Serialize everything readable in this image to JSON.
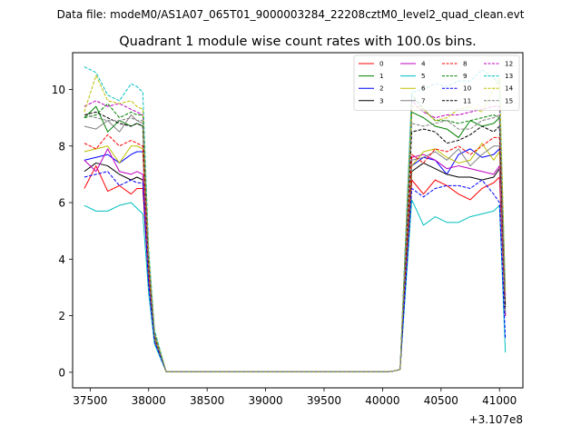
{
  "chart_data": {
    "type": "line",
    "suptitle": "Data file: modeM0/AS1A07_065T01_9000003284_22208cztM0_level2_quad_clean.evt",
    "title": "Quadrant 1 module wise count rates with 100.0s bins.",
    "xlabel": "",
    "ylabel": "",
    "x_offset_label": "+3.107e8",
    "xlim": [
      37350,
      41200
    ],
    "ylim": [
      -0.55,
      11.3
    ],
    "x_ticks": [
      37500,
      38000,
      38500,
      39000,
      39500,
      40000,
      40500,
      41000
    ],
    "x_tick_labels": [
      "37500",
      "38000",
      "38500",
      "39000",
      "39500",
      "40000",
      "40500",
      "41000"
    ],
    "y_ticks": [
      0,
      2,
      4,
      6,
      8,
      10
    ],
    "y_tick_labels": [
      "0",
      "2",
      "4",
      "6",
      "8",
      "10"
    ],
    "grid": false,
    "legend": {
      "placement": "top-right",
      "columns": 4
    },
    "x": [
      37450,
      37550,
      37650,
      37750,
      37850,
      37900,
      37950,
      38000,
      38050,
      38150,
      38250,
      38350,
      38450,
      38550,
      38650,
      38750,
      38850,
      38950,
      39050,
      39150,
      39250,
      39350,
      39450,
      39550,
      39650,
      39750,
      39850,
      39950,
      40050,
      40100,
      40150,
      40250,
      40350,
      40450,
      40550,
      40650,
      40750,
      40850,
      40950,
      41000,
      41050
    ],
    "series": [
      {
        "name": "0",
        "color": "#ff0000",
        "dash": false,
        "values": [
          6.5,
          7.3,
          6.4,
          6.6,
          6.3,
          6.5,
          6.5,
          3.2,
          1.2,
          0.02,
          0.02,
          0.02,
          0.02,
          0.02,
          0.02,
          0.02,
          0.02,
          0.02,
          0.02,
          0.02,
          0.02,
          0.02,
          0.02,
          0.02,
          0.02,
          0.02,
          0.02,
          0.02,
          0.02,
          0.05,
          0.1,
          6.8,
          6.3,
          6.8,
          6.6,
          6.3,
          6.1,
          6.5,
          6.7,
          6.9,
          2.0
        ]
      },
      {
        "name": "1",
        "color": "#008000",
        "dash": false,
        "values": [
          9.0,
          9.4,
          8.5,
          8.9,
          8.7,
          8.8,
          8.7,
          4.0,
          1.3,
          0.02,
          0.02,
          0.02,
          0.02,
          0.02,
          0.02,
          0.02,
          0.02,
          0.02,
          0.02,
          0.02,
          0.02,
          0.02,
          0.02,
          0.02,
          0.02,
          0.02,
          0.02,
          0.02,
          0.02,
          0.05,
          0.1,
          9.2,
          9.0,
          8.7,
          8.6,
          8.3,
          8.9,
          8.7,
          8.8,
          9.0,
          2.3
        ]
      },
      {
        "name": "2",
        "color": "#0000ff",
        "dash": false,
        "values": [
          7.5,
          7.6,
          7.7,
          7.4,
          7.7,
          7.8,
          7.8,
          3.5,
          1.2,
          0.02,
          0.02,
          0.02,
          0.02,
          0.02,
          0.02,
          0.02,
          0.02,
          0.02,
          0.02,
          0.02,
          0.02,
          0.02,
          0.02,
          0.02,
          0.02,
          0.02,
          0.02,
          0.02,
          0.02,
          0.05,
          0.1,
          7.3,
          7.6,
          7.5,
          7.0,
          7.7,
          7.9,
          7.6,
          7.7,
          7.9,
          2.1
        ]
      },
      {
        "name": "3",
        "color": "#000000",
        "dash": false,
        "values": [
          7.1,
          7.4,
          7.3,
          7.0,
          6.8,
          6.9,
          6.8,
          3.3,
          1.1,
          0.02,
          0.02,
          0.02,
          0.02,
          0.02,
          0.02,
          0.02,
          0.02,
          0.02,
          0.02,
          0.02,
          0.02,
          0.02,
          0.02,
          0.02,
          0.02,
          0.02,
          0.02,
          0.02,
          0.02,
          0.05,
          0.1,
          7.1,
          7.4,
          7.2,
          7.0,
          6.9,
          6.9,
          6.8,
          6.9,
          7.2,
          2.0
        ]
      },
      {
        "name": "4",
        "color": "#bf00bf",
        "dash": false,
        "values": [
          7.5,
          7.1,
          7.9,
          7.1,
          7.0,
          7.1,
          7.0,
          3.3,
          1.1,
          0.02,
          0.02,
          0.02,
          0.02,
          0.02,
          0.02,
          0.02,
          0.02,
          0.02,
          0.02,
          0.02,
          0.02,
          0.02,
          0.02,
          0.02,
          0.02,
          0.02,
          0.02,
          0.02,
          0.02,
          0.05,
          0.1,
          7.6,
          7.7,
          7.5,
          7.2,
          7.3,
          7.2,
          7.1,
          7.0,
          7.3,
          2.0
        ]
      },
      {
        "name": "5",
        "color": "#00bfbf",
        "dash": false,
        "values": [
          5.9,
          5.7,
          5.7,
          5.9,
          6.0,
          5.8,
          5.6,
          2.8,
          1.0,
          0.02,
          0.02,
          0.02,
          0.02,
          0.02,
          0.02,
          0.02,
          0.02,
          0.02,
          0.02,
          0.02,
          0.02,
          0.02,
          0.02,
          0.02,
          0.02,
          0.02,
          0.02,
          0.02,
          0.02,
          0.05,
          0.1,
          6.1,
          5.2,
          5.5,
          5.3,
          5.3,
          5.5,
          5.6,
          5.7,
          5.9,
          0.7
        ]
      },
      {
        "name": "6",
        "color": "#bfbf00",
        "dash": false,
        "values": [
          7.8,
          7.9,
          8.0,
          7.4,
          8.0,
          8.0,
          7.9,
          3.6,
          1.2,
          0.02,
          0.02,
          0.02,
          0.02,
          0.02,
          0.02,
          0.02,
          0.02,
          0.02,
          0.02,
          0.02,
          0.02,
          0.02,
          0.02,
          0.02,
          0.02,
          0.02,
          0.02,
          0.02,
          0.02,
          0.05,
          0.1,
          7.3,
          7.8,
          7.9,
          7.6,
          7.4,
          7.5,
          8.1,
          7.5,
          7.8,
          2.2
        ]
      },
      {
        "name": "7",
        "color": "#808080",
        "dash": false,
        "values": [
          8.7,
          8.6,
          8.9,
          8.5,
          9.1,
          8.9,
          8.8,
          3.9,
          1.3,
          0.02,
          0.02,
          0.02,
          0.02,
          0.02,
          0.02,
          0.02,
          0.02,
          0.02,
          0.02,
          0.02,
          0.02,
          0.02,
          0.02,
          0.02,
          0.02,
          0.02,
          0.02,
          0.02,
          0.02,
          0.05,
          0.1,
          7.5,
          7.6,
          7.8,
          7.5,
          7.9,
          7.3,
          7.7,
          8.0,
          8.0,
          2.1
        ]
      },
      {
        "name": "8",
        "color": "#ff0000",
        "dash": true,
        "values": [
          8.1,
          7.9,
          8.4,
          8.0,
          8.2,
          8.1,
          8.0,
          3.7,
          1.3,
          0.02,
          0.02,
          0.02,
          0.02,
          0.02,
          0.02,
          0.02,
          0.02,
          0.02,
          0.02,
          0.02,
          0.02,
          0.02,
          0.02,
          0.02,
          0.02,
          0.02,
          0.02,
          0.02,
          0.02,
          0.05,
          0.1,
          7.7,
          7.4,
          7.9,
          7.8,
          8.0,
          7.7,
          8.0,
          8.3,
          8.3,
          2.4
        ]
      },
      {
        "name": "9",
        "color": "#008000",
        "dash": true,
        "values": [
          9.0,
          9.1,
          9.5,
          9.0,
          9.2,
          9.1,
          9.1,
          4.1,
          1.4,
          0.02,
          0.02,
          0.02,
          0.02,
          0.02,
          0.02,
          0.02,
          0.02,
          0.02,
          0.02,
          0.02,
          0.02,
          0.02,
          0.02,
          0.02,
          0.02,
          0.02,
          0.02,
          0.02,
          0.02,
          0.05,
          0.1,
          9.8,
          9.3,
          8.9,
          8.9,
          8.8,
          8.9,
          9.0,
          9.1,
          9.0,
          2.6
        ]
      },
      {
        "name": "10",
        "color": "#0000ff",
        "dash": true,
        "values": [
          6.9,
          7.0,
          7.1,
          6.6,
          6.8,
          6.7,
          6.7,
          3.1,
          1.1,
          0.02,
          0.02,
          0.02,
          0.02,
          0.02,
          0.02,
          0.02,
          0.02,
          0.02,
          0.02,
          0.02,
          0.02,
          0.02,
          0.02,
          0.02,
          0.02,
          0.02,
          0.02,
          0.02,
          0.02,
          0.05,
          0.1,
          6.5,
          6.2,
          6.5,
          6.6,
          6.6,
          6.5,
          6.8,
          6.3,
          6.0,
          1.2
        ]
      },
      {
        "name": "11",
        "color": "#000000",
        "dash": true,
        "values": [
          9.1,
          9.2,
          9.0,
          8.8,
          8.7,
          8.8,
          8.7,
          3.9,
          1.3,
          0.02,
          0.02,
          0.02,
          0.02,
          0.02,
          0.02,
          0.02,
          0.02,
          0.02,
          0.02,
          0.02,
          0.02,
          0.02,
          0.02,
          0.02,
          0.02,
          0.02,
          0.02,
          0.02,
          0.02,
          0.05,
          0.1,
          8.5,
          8.6,
          8.5,
          8.1,
          8.2,
          8.4,
          8.7,
          8.5,
          8.7,
          2.3
        ]
      },
      {
        "name": "12",
        "color": "#bf00bf",
        "dash": true,
        "values": [
          9.4,
          9.6,
          9.4,
          9.5,
          9.3,
          9.2,
          9.1,
          4.1,
          1.4,
          0.02,
          0.02,
          0.02,
          0.02,
          0.02,
          0.02,
          0.02,
          0.02,
          0.02,
          0.02,
          0.02,
          0.02,
          0.02,
          0.02,
          0.02,
          0.02,
          0.02,
          0.02,
          0.02,
          0.02,
          0.05,
          0.1,
          9.6,
          9.2,
          9.0,
          9.1,
          9.1,
          9.2,
          9.3,
          9.4,
          9.4,
          2.7
        ]
      },
      {
        "name": "13",
        "color": "#00bfbf",
        "dash": true,
        "values": [
          10.8,
          10.6,
          9.8,
          9.6,
          10.2,
          10.1,
          9.9,
          4.4,
          1.5,
          0.02,
          0.02,
          0.02,
          0.02,
          0.02,
          0.02,
          0.02,
          0.02,
          0.02,
          0.02,
          0.02,
          0.02,
          0.02,
          0.02,
          0.02,
          0.02,
          0.02,
          0.02,
          0.02,
          0.02,
          0.05,
          0.1,
          9.9,
          10.0,
          10.2,
          10.1,
          10.3,
          10.3,
          10.7,
          10.4,
          10.2,
          2.9
        ]
      },
      {
        "name": "14",
        "color": "#bfbf00",
        "dash": true,
        "values": [
          9.2,
          10.5,
          9.6,
          9.5,
          9.6,
          9.4,
          9.3,
          4.2,
          1.4,
          0.02,
          0.02,
          0.02,
          0.02,
          0.02,
          0.02,
          0.02,
          0.02,
          0.02,
          0.02,
          0.02,
          0.02,
          0.02,
          0.02,
          0.02,
          0.02,
          0.02,
          0.02,
          0.02,
          0.02,
          0.05,
          0.1,
          9.4,
          9.3,
          8.9,
          9.0,
          9.3,
          9.4,
          9.2,
          10.0,
          10.4,
          2.8
        ]
      },
      {
        "name": "15",
        "color": "#808080",
        "dash": true,
        "values": [
          9.1,
          9.0,
          8.9,
          8.9,
          9.0,
          8.9,
          8.9,
          4.0,
          1.3,
          0.02,
          0.02,
          0.02,
          0.02,
          0.02,
          0.02,
          0.02,
          0.02,
          0.02,
          0.02,
          0.02,
          0.02,
          0.02,
          0.02,
          0.02,
          0.02,
          0.02,
          0.02,
          0.02,
          0.02,
          0.05,
          0.1,
          8.8,
          8.7,
          8.8,
          8.9,
          8.6,
          8.6,
          8.9,
          9.0,
          9.1,
          2.5
        ]
      }
    ]
  }
}
